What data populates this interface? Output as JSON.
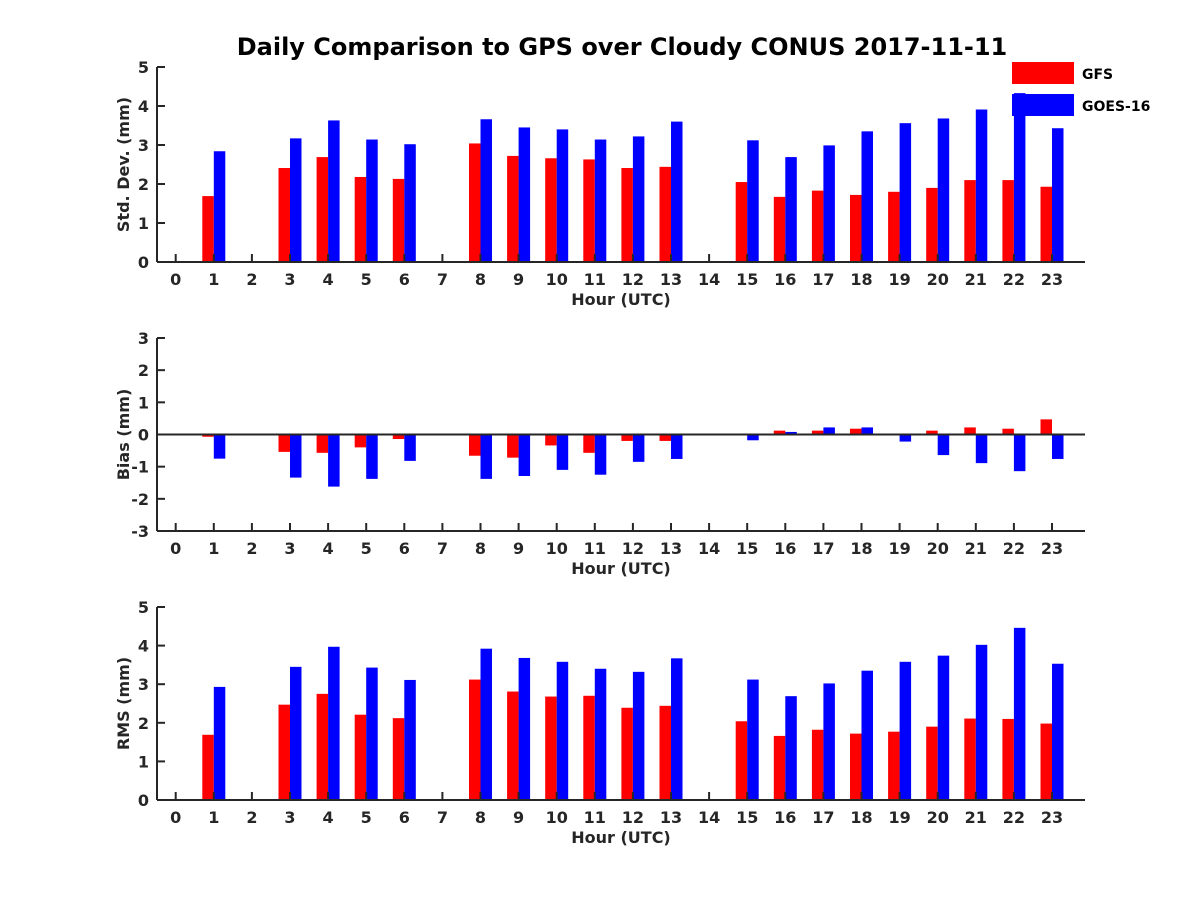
{
  "figure": {
    "title": "Daily Comparison to GPS over Cloudy CONUS 2017-11-11"
  },
  "legend": {
    "placement": "top-right",
    "entries": [
      {
        "name": "GFS",
        "color": "#ff0000"
      },
      {
        "name": "GOES-16",
        "color": "#0000ff"
      }
    ]
  },
  "chart_data": [
    {
      "type": "bar",
      "ylabel": "Std. Dev. (mm)",
      "xlabel": "Hour (UTC)",
      "ylim": [
        0,
        5
      ],
      "yticks": [
        0,
        1,
        2,
        3,
        4,
        5
      ],
      "categories": [
        "0",
        "1",
        "2",
        "3",
        "4",
        "5",
        "6",
        "7",
        "8",
        "9",
        "10",
        "11",
        "12",
        "13",
        "14",
        "15",
        "16",
        "17",
        "18",
        "19",
        "20",
        "21",
        "22",
        "23"
      ],
      "series": [
        {
          "name": "GFS",
          "color": "#ff0000",
          "values": [
            null,
            1.69,
            null,
            2.41,
            2.69,
            2.18,
            2.13,
            null,
            3.04,
            2.72,
            2.66,
            2.63,
            2.41,
            2.44,
            null,
            2.05,
            1.67,
            1.83,
            1.72,
            1.8,
            1.9,
            2.1,
            2.1,
            1.93
          ]
        },
        {
          "name": "GOES-16",
          "color": "#0000ff",
          "values": [
            null,
            2.84,
            null,
            3.17,
            3.63,
            3.14,
            3.02,
            null,
            3.66,
            3.45,
            3.4,
            3.14,
            3.22,
            3.6,
            null,
            3.12,
            2.69,
            2.99,
            3.35,
            3.56,
            3.68,
            3.91,
            4.33,
            3.43
          ]
        }
      ]
    },
    {
      "type": "bar",
      "ylabel": "Bias (mm)",
      "xlabel": "Hour (UTC)",
      "ylim": [
        -3,
        3
      ],
      "yticks": [
        -3,
        -2,
        -1,
        0,
        1,
        2,
        3
      ],
      "categories": [
        "0",
        "1",
        "2",
        "3",
        "4",
        "5",
        "6",
        "7",
        "8",
        "9",
        "10",
        "11",
        "12",
        "13",
        "14",
        "15",
        "16",
        "17",
        "18",
        "19",
        "20",
        "21",
        "22",
        "23"
      ],
      "series": [
        {
          "name": "GFS",
          "color": "#ff0000",
          "values": [
            null,
            -0.07,
            null,
            -0.54,
            -0.57,
            -0.4,
            -0.14,
            null,
            -0.66,
            -0.72,
            -0.34,
            -0.57,
            -0.2,
            -0.2,
            null,
            -0.03,
            0.12,
            0.12,
            0.18,
            0.03,
            0.12,
            0.22,
            0.18,
            0.47
          ]
        },
        {
          "name": "GOES-16",
          "color": "#0000ff",
          "values": [
            null,
            -0.75,
            null,
            -1.34,
            -1.62,
            -1.38,
            -0.82,
            null,
            -1.38,
            -1.29,
            -1.1,
            -1.25,
            -0.85,
            -0.76,
            null,
            -0.18,
            0.08,
            0.22,
            0.22,
            -0.22,
            -0.64,
            -0.89,
            -1.14,
            -0.76
          ]
        }
      ]
    },
    {
      "type": "bar",
      "ylabel": "RMS (mm)",
      "xlabel": "Hour (UTC)",
      "ylim": [
        0,
        5
      ],
      "yticks": [
        0,
        1,
        2,
        3,
        4,
        5
      ],
      "categories": [
        "0",
        "1",
        "2",
        "3",
        "4",
        "5",
        "6",
        "7",
        "8",
        "9",
        "10",
        "11",
        "12",
        "13",
        "14",
        "15",
        "16",
        "17",
        "18",
        "19",
        "20",
        "21",
        "22",
        "23"
      ],
      "series": [
        {
          "name": "GFS",
          "color": "#ff0000",
          "values": [
            null,
            1.69,
            null,
            2.47,
            2.75,
            2.21,
            2.12,
            null,
            3.12,
            2.81,
            2.68,
            2.7,
            2.39,
            2.44,
            null,
            2.04,
            1.66,
            1.82,
            1.72,
            1.77,
            1.9,
            2.11,
            2.1,
            1.98
          ]
        },
        {
          "name": "GOES-16",
          "color": "#0000ff",
          "values": [
            null,
            2.93,
            null,
            3.45,
            3.97,
            3.43,
            3.11,
            null,
            3.92,
            3.68,
            3.58,
            3.4,
            3.32,
            3.67,
            null,
            3.12,
            2.69,
            3.02,
            3.35,
            3.58,
            3.74,
            4.02,
            4.46,
            3.53
          ]
        }
      ]
    }
  ]
}
